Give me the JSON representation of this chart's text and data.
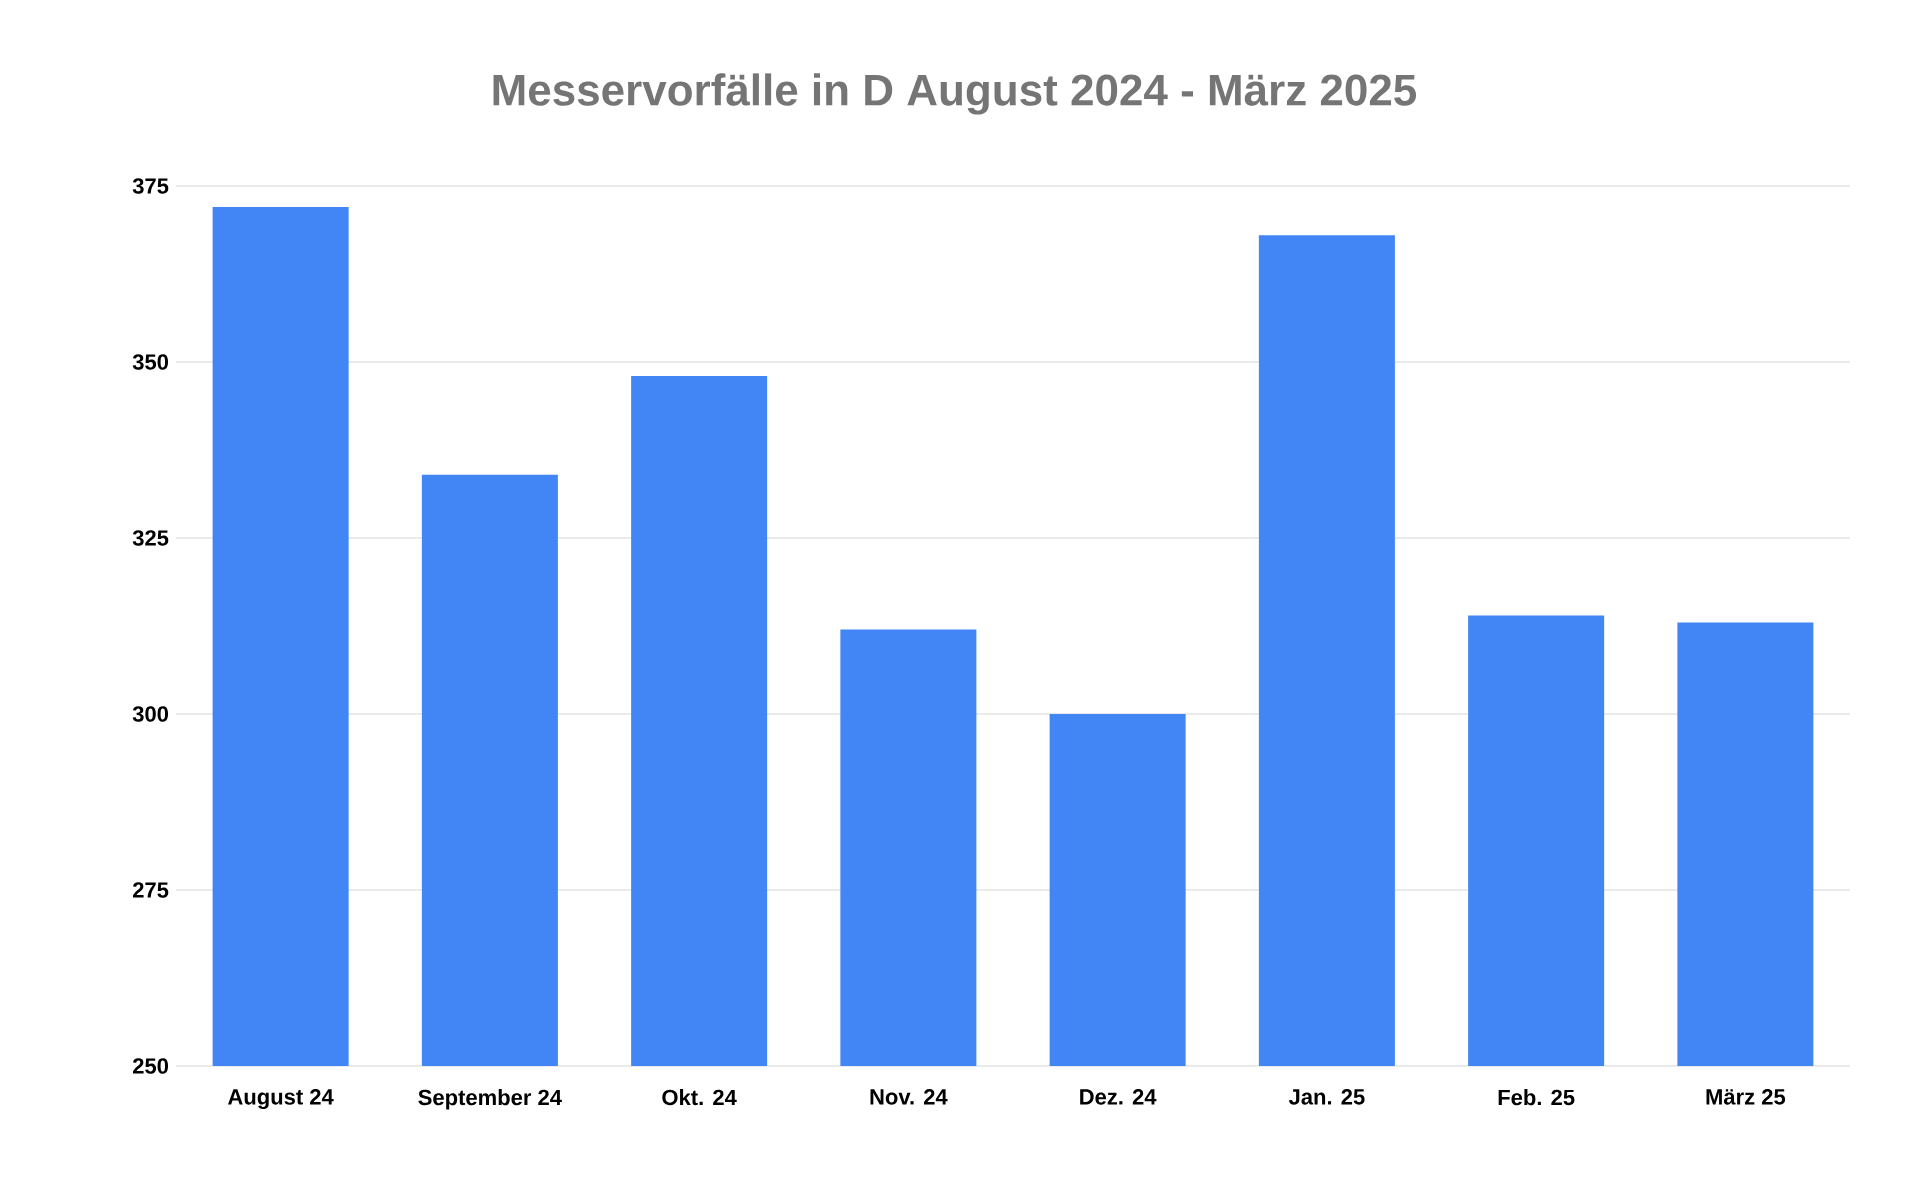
{
  "chart_data": {
    "type": "bar",
    "title": "Messervorfälle in D August 2024 - März 2025",
    "categories": [
      "August 24",
      "September 24",
      "Okt. 24",
      "Nov. 24",
      "Dez. 24",
      "Jan. 25",
      "Feb. 25",
      "März 25"
    ],
    "values": [
      372,
      334,
      348,
      312,
      300,
      368,
      314,
      313
    ],
    "color": "#4285f4",
    "ylim": [
      250,
      375
    ],
    "yticks": [
      250,
      275,
      300,
      325,
      350,
      375
    ],
    "grid": "y"
  }
}
